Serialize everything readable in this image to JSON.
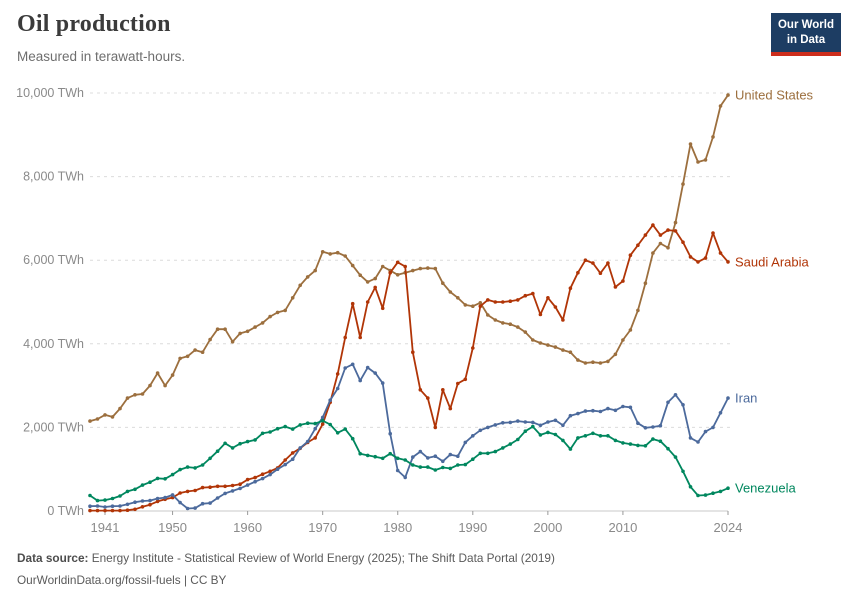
{
  "header": {
    "title": "Oil production",
    "subtitle": "Measured in terawatt-hours."
  },
  "logo": {
    "line1": "Our World",
    "line2": "in Data",
    "bg": "#1d3d63",
    "accent": "#cd2d1c"
  },
  "footer": {
    "source_label": "Data source:",
    "source_text": " Energy Institute - Statistical Review of World Energy (2025); The Shift Data Portal (2019)",
    "note": "OurWorldinData.org/fossil-fuels | CC BY"
  },
  "chart_data": {
    "type": "line",
    "title": "Oil production",
    "unit": "TWh",
    "x_start": 1939,
    "x_end": 2024,
    "xticks": [
      1941,
      1950,
      1960,
      1970,
      1980,
      1990,
      2000,
      2010,
      2024
    ],
    "ylim": [
      0,
      10000
    ],
    "ytick_step": 2000,
    "grid": "horizontal-dashed",
    "legend_position": "right-end-labels",
    "colors": {
      "grid": "#dcdcdc",
      "axis": "#c8c8c8",
      "tick": "#999999",
      "tick_label": "#8a8a8a"
    },
    "series": [
      {
        "name": "United States",
        "color": "#9c6f3e",
        "values": [
          2150,
          2200,
          2300,
          2250,
          2450,
          2700,
          2780,
          2800,
          3000,
          3300,
          3000,
          3250,
          3650,
          3700,
          3850,
          3800,
          4100,
          4350,
          4350,
          4050,
          4250,
          4300,
          4400,
          4500,
          4650,
          4750,
          4800,
          5100,
          5400,
          5600,
          5750,
          6200,
          6150,
          6180,
          6100,
          5870,
          5640,
          5480,
          5560,
          5850,
          5750,
          5650,
          5700,
          5750,
          5800,
          5810,
          5800,
          5450,
          5240,
          5100,
          4930,
          4900,
          4980,
          4690,
          4570,
          4500,
          4470,
          4400,
          4280,
          4090,
          4020,
          3970,
          3920,
          3850,
          3800,
          3610,
          3540,
          3560,
          3540,
          3580,
          3750,
          4090,
          4330,
          4800,
          5450,
          6170,
          6400,
          6300,
          6900,
          7820,
          8780,
          8350,
          8400,
          8950,
          9690,
          9950
        ]
      },
      {
        "name": "Saudi Arabia",
        "color": "#b13507",
        "values": [
          10,
          10,
          10,
          10,
          10,
          20,
          40,
          100,
          150,
          230,
          280,
          320,
          430,
          470,
          490,
          560,
          570,
          590,
          590,
          610,
          640,
          750,
          800,
          880,
          950,
          1030,
          1220,
          1390,
          1500,
          1640,
          1750,
          2080,
          2600,
          3280,
          4150,
          4960,
          4150,
          5000,
          5350,
          4850,
          5700,
          5950,
          5850,
          3800,
          2900,
          2700,
          2000,
          2900,
          2450,
          3050,
          3150,
          3900,
          4900,
          5050,
          5000,
          5000,
          5020,
          5050,
          5150,
          5200,
          4700,
          5100,
          4880,
          4570,
          5330,
          5700,
          6000,
          5930,
          5690,
          5930,
          5360,
          5500,
          6120,
          6360,
          6600,
          6840,
          6600,
          6720,
          6700,
          6430,
          6080,
          5960,
          6050,
          6650,
          6170,
          5960
        ]
      },
      {
        "name": "Iran",
        "color": "#4c6a9c",
        "values": [
          115,
          120,
          95,
          115,
          120,
          160,
          210,
          240,
          250,
          300,
          320,
          385,
          200,
          60,
          70,
          175,
          190,
          310,
          420,
          480,
          540,
          620,
          700,
          775,
          870,
          1000,
          1110,
          1240,
          1510,
          1660,
          1970,
          2240,
          2650,
          2930,
          3420,
          3510,
          3120,
          3430,
          3300,
          3060,
          1850,
          970,
          805,
          1290,
          1420,
          1270,
          1310,
          1190,
          1350,
          1310,
          1640,
          1800,
          1930,
          2000,
          2060,
          2110,
          2120,
          2150,
          2130,
          2120,
          2050,
          2130,
          2170,
          2050,
          2280,
          2330,
          2390,
          2400,
          2380,
          2450,
          2410,
          2500,
          2480,
          2100,
          1990,
          2010,
          2040,
          2600,
          2780,
          2540,
          1750,
          1650,
          1900,
          2000,
          2350,
          2700
        ]
      },
      {
        "name": "Venezuela",
        "color": "#00875e",
        "values": [
          370,
          250,
          260,
          300,
          360,
          470,
          520,
          620,
          690,
          780,
          770,
          870,
          990,
          1050,
          1030,
          1100,
          1260,
          1430,
          1620,
          1510,
          1610,
          1660,
          1700,
          1860,
          1890,
          1970,
          2020,
          1960,
          2060,
          2100,
          2090,
          2160,
          2070,
          1870,
          1960,
          1730,
          1370,
          1330,
          1300,
          1260,
          1370,
          1260,
          1220,
          1100,
          1050,
          1050,
          980,
          1040,
          1020,
          1100,
          1110,
          1240,
          1380,
          1380,
          1420,
          1510,
          1600,
          1710,
          1910,
          2020,
          1820,
          1880,
          1830,
          1690,
          1480,
          1750,
          1800,
          1860,
          1800,
          1800,
          1690,
          1630,
          1600,
          1570,
          1560,
          1720,
          1670,
          1490,
          1290,
          950,
          580,
          370,
          380,
          425,
          470,
          545
        ]
      }
    ]
  }
}
